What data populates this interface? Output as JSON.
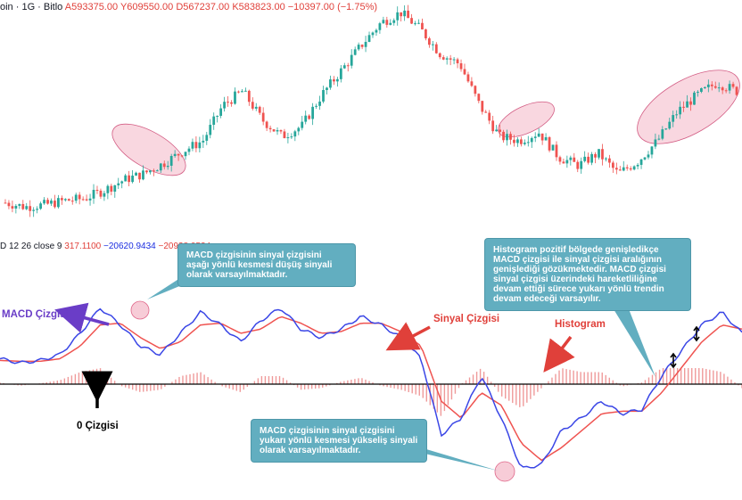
{
  "header": {
    "symbol": "oin · 1G · Bitlo",
    "ohlc": "A593375.00 Y609550.00 D567237.00 K583823.00 −10397.00 (−1.75%)"
  },
  "macd_header": {
    "params": "D 12 26 close 9",
    "value1": "317.1100",
    "value2": "−20620.9434",
    "value3": "−20938.0534"
  },
  "annotations": {
    "callout_cross_down": "MACD çizgisinin sinyal çizgisini aşağı yönlü kesmesi düşüş sinyali olarak varsayılmaktadır.",
    "callout_histogram": "Histogram pozitif bölgede genişledikçe MACD çizgisi ile sinyal çizgisi aralığının genişlediği gözükmektedir. MACD çizgisi sinyal çizgisi üzerindeki hareketliliğine devam ettiği sürece yukarı yönlü trendin devam edeceği varsayılır.",
    "callout_cross_up": "MACD çizgisinin sinyal çizgisini yukarı yönlü kesmesi yükseliş sinyali olarak varsayılmaktadır.",
    "label_macd": "MACD Çizgisi",
    "label_signal": "Sinyal Çizgisi",
    "label_histogram": "Histogram",
    "label_zero": "0 Çizgisi"
  },
  "colors": {
    "up": "#26a69a",
    "down": "#ef5350",
    "macd": "#3a46e6",
    "signal": "#ef5350",
    "histogram": "#ef9a9a",
    "zero_line": "#000000",
    "highlight": "#f4b7c6",
    "callout": "#62aec0",
    "arrow_purple": "#6a3dc7",
    "arrow_red": "#e0403a"
  },
  "chart_data": [
    {
      "type": "candlestick",
      "title": "",
      "description_free": true,
      "close_trend": [
        8,
        6,
        7,
        9,
        10,
        14,
        19,
        22,
        27,
        33,
        38,
        55,
        62,
        48,
        40,
        45,
        60,
        72,
        84,
        95,
        100,
        92,
        80,
        75,
        55,
        40,
        38,
        42,
        30,
        26,
        32,
        22,
        28,
        38,
        52,
        60,
        66,
        62
      ],
      "highlight_zones": 4
    },
    {
      "type": "line",
      "title": "",
      "series": [
        {
          "values": [
            30,
            25,
            28,
            35,
            60,
            90,
            70,
            45,
            35,
            60,
            85,
            70,
            50,
            75,
            90,
            65,
            55,
            65,
            80,
            70,
            55,
            30,
            -60,
            -40,
            10,
            -40,
            -100,
            -95,
            -55,
            -40,
            -20,
            -35,
            -30,
            10,
            40,
            70,
            85,
            60
          ]
        },
        {
          "values": [
            28,
            27,
            27,
            30,
            45,
            70,
            72,
            55,
            42,
            50,
            70,
            72,
            60,
            65,
            80,
            72,
            60,
            62,
            72,
            72,
            62,
            45,
            -20,
            -40,
            -10,
            -25,
            -70,
            -90,
            -75,
            -55,
            -35,
            -32,
            -32,
            -10,
            20,
            50,
            70,
            65
          ]
        }
      ],
      "histogram": [
        2,
        -2,
        1,
        5,
        15,
        20,
        -2,
        -10,
        -7,
        10,
        15,
        -2,
        -10,
        10,
        10,
        -7,
        -5,
        3,
        8,
        -2,
        -7,
        -15,
        -40,
        0,
        20,
        -15,
        -30,
        -5,
        20,
        15,
        15,
        -3,
        2,
        20,
        20,
        20,
        15,
        -5
      ]
    }
  ]
}
